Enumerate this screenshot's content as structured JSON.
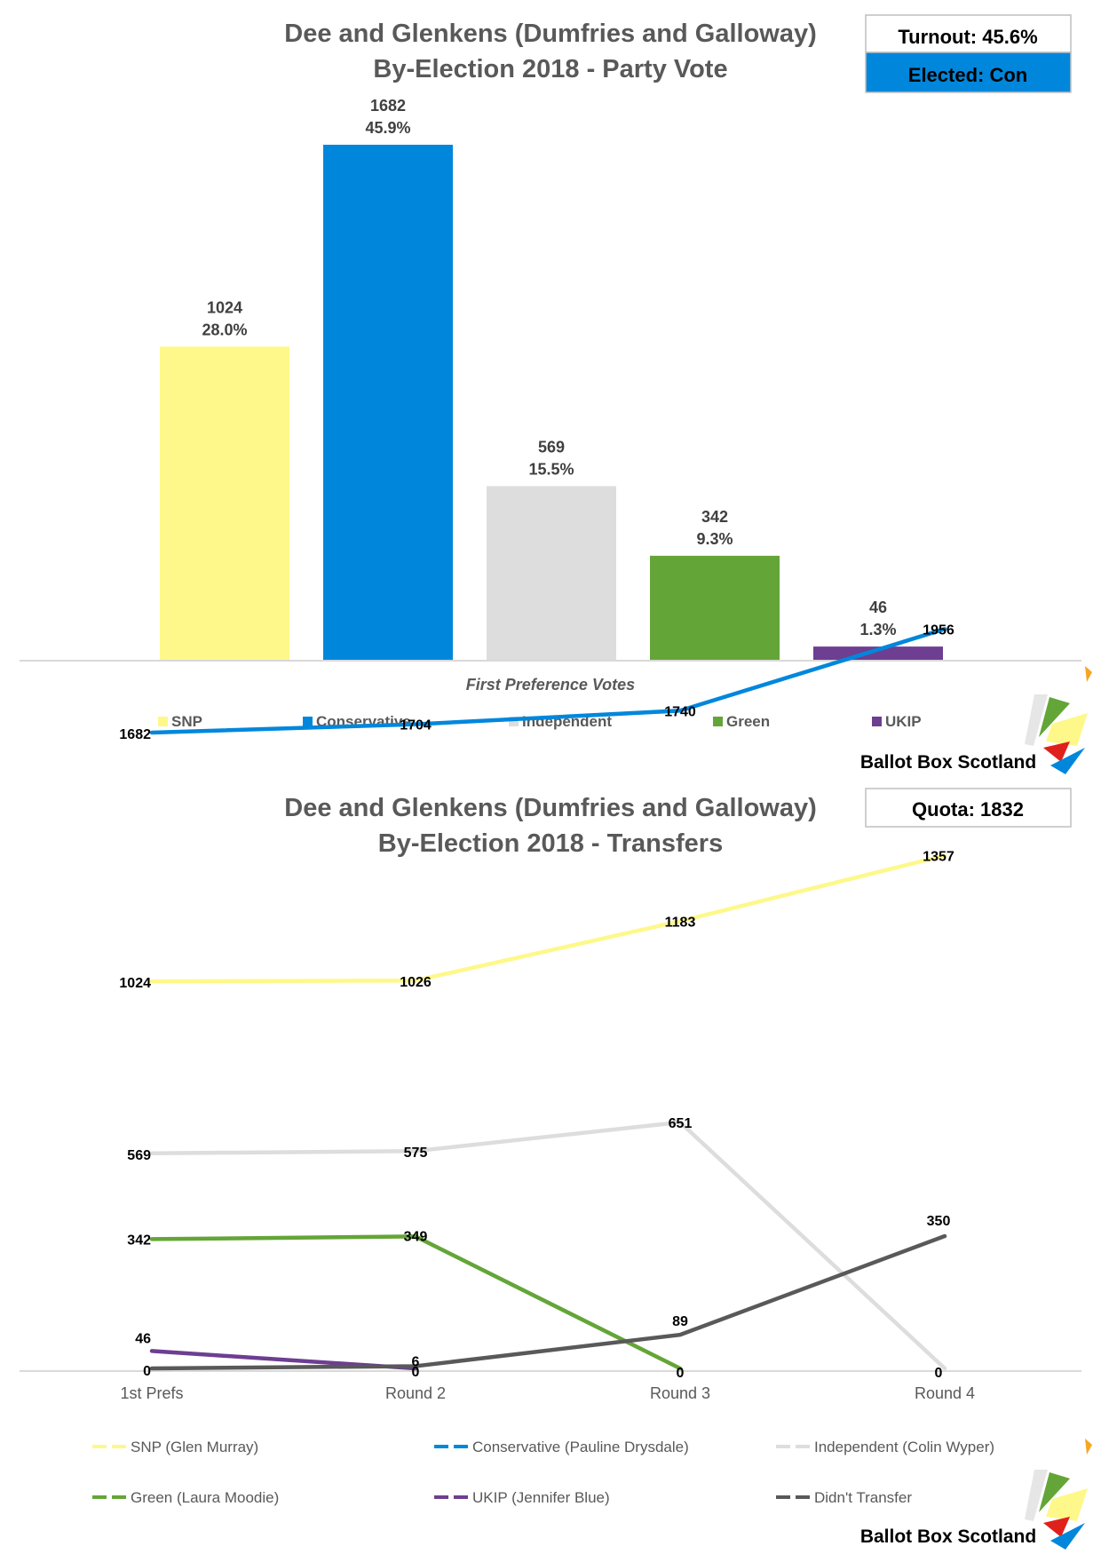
{
  "charts": {
    "party": {
      "title_line1": "Dee and Glenkens (Dumfries and Galloway)",
      "title_line2": "By-Election 2018 - Party Vote",
      "turnout": "Turnout: 45.6%",
      "elected": "Elected: Con",
      "brand": "Ballot Box Scotland"
    },
    "transfers": {
      "title_line1": "Dee and Glenkens (Dumfries and Galloway)",
      "title_line2": "By-Election 2018 - Transfers",
      "quota": "Quota: 1832",
      "brand": "Ballot Box Scotland"
    }
  },
  "chart_data": [
    {
      "type": "bar",
      "title": "Dee and Glenkens (Dumfries and Galloway) By-Election 2018 - Party Vote",
      "xlabel": "First Preference Votes",
      "ylabel": "",
      "categories": [
        "SNP",
        "Conservative",
        "Independent",
        "Green",
        "UKIP"
      ],
      "values": [
        1024,
        1682,
        569,
        342,
        46
      ],
      "percent_labels": [
        "28.0%",
        "45.9%",
        "15.5%",
        "9.3%",
        "1.3%"
      ],
      "colors": [
        "#fef88a",
        "#0087dc",
        "#dddddd",
        "#64a537",
        "#6d3e91"
      ],
      "ylim": [
        0,
        1800
      ],
      "legend": "bottom",
      "grid": false
    },
    {
      "type": "line",
      "title": "Dee and Glenkens (Dumfries and Galloway) By-Election 2018 - Transfers",
      "xlabel": "",
      "ylabel": "",
      "x": [
        "1st Prefs",
        "Round 2",
        "Round 3",
        "Round 4"
      ],
      "ylim": [
        0,
        2000
      ],
      "legend": "bottom",
      "grid": false,
      "series": [
        {
          "name": "SNP (Glen Murray)",
          "values": [
            1024,
            1026,
            1183,
            1357
          ],
          "color": "#fef88a"
        },
        {
          "name": "Conservative (Pauline Drysdale)",
          "values": [
            1682,
            1704,
            1740,
            1956
          ],
          "color": "#0087dc"
        },
        {
          "name": "Independent (Colin Wyper)",
          "values": [
            569,
            575,
            651,
            0
          ],
          "color": "#dddddd"
        },
        {
          "name": "Green (Laura Moodie)",
          "values": [
            342,
            349,
            0,
            null
          ],
          "color": "#64a537"
        },
        {
          "name": "UKIP (Jennifer Blue)",
          "values": [
            46,
            0,
            null,
            null
          ],
          "color": "#6d3e91"
        },
        {
          "name": "Didn't Transfer",
          "values": [
            0,
            6,
            89,
            350
          ],
          "color": "#595959"
        }
      ],
      "point_labels": [
        [
          "1024",
          "1026",
          "1183",
          "1357"
        ],
        [
          "1682",
          "1704",
          "1740",
          "1956"
        ],
        [
          "569",
          "575",
          "651",
          "0"
        ],
        [
          "342",
          "349",
          "0",
          ""
        ],
        [
          "46",
          "0",
          "",
          ""
        ],
        [
          "0",
          "6",
          "89",
          "350"
        ]
      ]
    }
  ]
}
